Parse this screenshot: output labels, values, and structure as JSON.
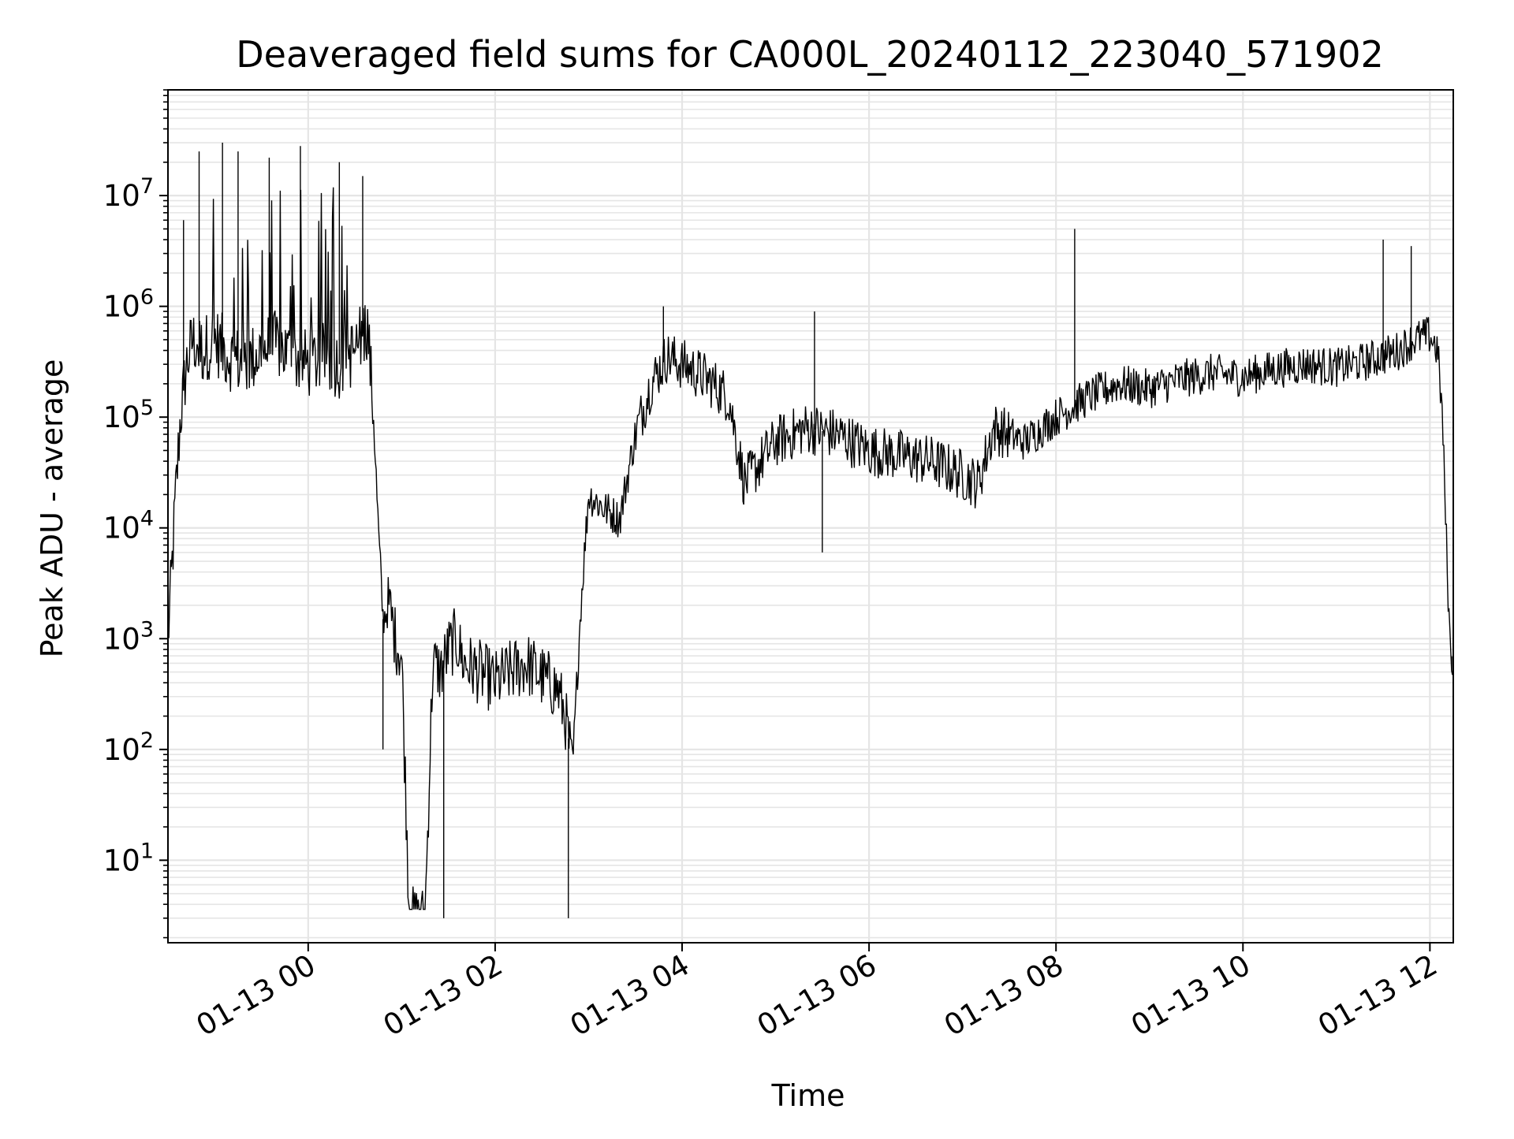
{
  "chart_data": {
    "type": "line",
    "title": "Deaveraged field sums for CA000L_20240112_223040_571902",
    "xlabel": "Time",
    "ylabel": "Peak ADU - average",
    "x_scale": "time",
    "y_scale": "log",
    "xlim": [
      "2024-01-12 22:30",
      "2024-01-13 12:15"
    ],
    "ylim": [
      1.8,
      90000000
    ],
    "grid": true,
    "line_color": "#000000",
    "grid_color": "#e5e5e5",
    "x_ticks": [
      {
        "value": "2024-01-13 00:00",
        "label": "01-13 00"
      },
      {
        "value": "2024-01-13 02:00",
        "label": "01-13 02"
      },
      {
        "value": "2024-01-13 04:00",
        "label": "01-13 04"
      },
      {
        "value": "2024-01-13 06:00",
        "label": "01-13 06"
      },
      {
        "value": "2024-01-13 08:00",
        "label": "01-13 08"
      },
      {
        "value": "2024-01-13 10:00",
        "label": "01-13 10"
      },
      {
        "value": "2024-01-13 12:00",
        "label": "01-13 12"
      }
    ],
    "y_ticks": [
      {
        "value": 10,
        "base": "10",
        "exp": "1"
      },
      {
        "value": 100,
        "base": "10",
        "exp": "2"
      },
      {
        "value": 1000,
        "base": "10",
        "exp": "3"
      },
      {
        "value": 10000,
        "base": "10",
        "exp": "4"
      },
      {
        "value": 100000,
        "base": "10",
        "exp": "5"
      },
      {
        "value": 1000000,
        "base": "10",
        "exp": "6"
      },
      {
        "value": 10000000,
        "base": "10",
        "exp": "7"
      }
    ],
    "series": [
      {
        "x": [
          "2024-01-12 22:30",
          "2024-01-12 22:32",
          "2024-01-12 22:35",
          "2024-01-12 22:38",
          "2024-01-12 22:42",
          "2024-01-12 22:46",
          "2024-01-12 22:52",
          "2024-01-12 23:00",
          "2024-01-12 23:10",
          "2024-01-12 23:20",
          "2024-01-12 23:30",
          "2024-01-12 23:40",
          "2024-01-12 23:50",
          "2024-01-13 00:00",
          "2024-01-13 00:10",
          "2024-01-13 00:20",
          "2024-01-13 00:30",
          "2024-01-13 00:38",
          "2024-01-13 00:42",
          "2024-01-13 00:45",
          "2024-01-13 00:48",
          "2024-01-13 00:52",
          "2024-01-13 00:56",
          "2024-01-13 01:00",
          "2024-01-13 01:05",
          "2024-01-13 01:10",
          "2024-01-13 01:15",
          "2024-01-13 01:20",
          "2024-01-13 01:25",
          "2024-01-13 01:30",
          "2024-01-13 01:35",
          "2024-01-13 01:40",
          "2024-01-13 01:50",
          "2024-01-13 02:00",
          "2024-01-13 02:10",
          "2024-01-13 02:20",
          "2024-01-13 02:30",
          "2024-01-13 02:40",
          "2024-01-13 02:45",
          "2024-01-13 02:48",
          "2024-01-13 02:50",
          "2024-01-13 02:55",
          "2024-01-13 03:00",
          "2024-01-13 03:10",
          "2024-01-13 03:20",
          "2024-01-13 03:30",
          "2024-01-13 03:40",
          "2024-01-13 03:50",
          "2024-01-13 04:00",
          "2024-01-13 04:10",
          "2024-01-13 04:20",
          "2024-01-13 04:30",
          "2024-01-13 04:40",
          "2024-01-13 05:00",
          "2024-01-13 05:20",
          "2024-01-13 05:40",
          "2024-01-13 06:00",
          "2024-01-13 06:20",
          "2024-01-13 06:40",
          "2024-01-13 07:00",
          "2024-01-13 07:10",
          "2024-01-13 07:20",
          "2024-01-13 07:40",
          "2024-01-13 08:00",
          "2024-01-13 08:20",
          "2024-01-13 08:40",
          "2024-01-13 09:00",
          "2024-01-13 09:20",
          "2024-01-13 09:40",
          "2024-01-13 10:00",
          "2024-01-13 10:20",
          "2024-01-13 10:40",
          "2024-01-13 11:00",
          "2024-01-13 11:20",
          "2024-01-13 11:40",
          "2024-01-13 11:50",
          "2024-01-13 12:00",
          "2024-01-13 12:05",
          "2024-01-13 12:08",
          "2024-01-13 12:11",
          "2024-01-13 12:13",
          "2024-01-13 12:15"
        ],
        "y": [
          1000,
          3000,
          20000,
          100000,
          300000,
          500000,
          400000,
          500000,
          350000,
          300000,
          400000,
          450000,
          350000,
          300000,
          350000,
          300000,
          400000,
          700000,
          100000,
          10000,
          1500,
          2000,
          1000,
          700,
          3,
          3,
          3,
          600,
          500,
          800,
          1000,
          600,
          500,
          400,
          500,
          600,
          450,
          350,
          200,
          100,
          80,
          2000,
          20000,
          15000,
          12000,
          70000,
          200000,
          350000,
          300000,
          250000,
          200000,
          150000,
          25000,
          60000,
          80000,
          70000,
          50000,
          45000,
          40000,
          30000,
          25000,
          80000,
          60000,
          100000,
          150000,
          200000,
          180000,
          220000,
          250000,
          230000,
          270000,
          300000,
          280000,
          320000,
          400000,
          500000,
          550000,
          400000,
          100000,
          5000,
          800,
          600
        ]
      }
    ],
    "spikes": [
      {
        "x": "2024-01-12 22:40",
        "y": 6000000
      },
      {
        "x": "2024-01-12 22:50",
        "y": 25000000
      },
      {
        "x": "2024-01-12 23:05",
        "y": 30000000
      },
      {
        "x": "2024-01-12 23:15",
        "y": 25000000
      },
      {
        "x": "2024-01-12 23:35",
        "y": 22000000
      },
      {
        "x": "2024-01-12 23:55",
        "y": 28000000
      },
      {
        "x": "2024-01-13 00:20",
        "y": 20000000
      },
      {
        "x": "2024-01-13 00:35",
        "y": 15000000
      },
      {
        "x": "2024-01-13 03:48",
        "y": 1000000
      },
      {
        "x": "2024-01-13 05:25",
        "y": 900000
      },
      {
        "x": "2024-01-13 08:12",
        "y": 5000000
      },
      {
        "x": "2024-01-13 11:30",
        "y": 4000000
      },
      {
        "x": "2024-01-13 11:48",
        "y": 3500000
      }
    ],
    "dips": [
      {
        "x": "2024-01-13 00:48",
        "y": 100
      },
      {
        "x": "2024-01-13 01:10",
        "y": 3
      },
      {
        "x": "2024-01-13 01:27",
        "y": 3
      },
      {
        "x": "2024-01-13 02:47",
        "y": 3
      },
      {
        "x": "2024-01-13 05:30",
        "y": 6000
      },
      {
        "x": "2024-01-13 12:14",
        "y": 500
      }
    ]
  }
}
